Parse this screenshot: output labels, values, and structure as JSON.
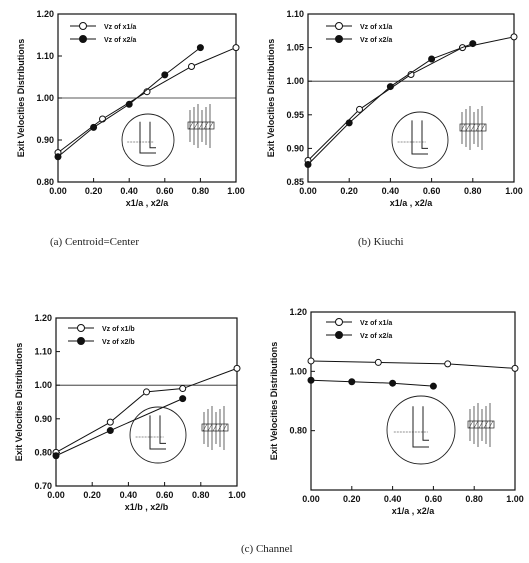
{
  "captions": {
    "a": "(a)  Centroid=Center",
    "b": "(b)  Kiuchi",
    "c": "(c)  Channel"
  },
  "chart_data": [
    {
      "type": "line",
      "ylabel": "Exit Velocities Distributions",
      "xlabel": "x1/a   ,  x2/a",
      "xlim": [
        0,
        1
      ],
      "ylim": [
        0.8,
        1.2
      ],
      "xticks": [
        "0.00",
        "0.20",
        "0.40",
        "0.60",
        "0.80",
        "1.00"
      ],
      "yticks": [
        "0.80",
        "0.90",
        "1.00",
        "1.10",
        "1.20"
      ],
      "ref_line": 1.0,
      "series": [
        {
          "name": "Vz of x1/a",
          "marker": "open",
          "x": [
            0,
            0.25,
            0.5,
            0.75,
            1.0
          ],
          "values": [
            0.87,
            0.95,
            1.015,
            1.075,
            1.12
          ]
        },
        {
          "name": "Vz of x2/a",
          "marker": "filled",
          "x": [
            0,
            0.2,
            0.4,
            0.6,
            0.8
          ],
          "values": [
            0.86,
            0.93,
            0.985,
            1.055,
            1.12
          ]
        }
      ]
    },
    {
      "type": "line",
      "ylabel": "Exit Velocities Distributions",
      "xlabel": "x1/a   ,  x2/a",
      "xlim": [
        0,
        1
      ],
      "ylim": [
        0.85,
        1.1
      ],
      "xticks": [
        "0.00",
        "0.20",
        "0.40",
        "0.60",
        "0.80",
        "1.00"
      ],
      "yticks": [
        "0.85",
        "0.90",
        "0.95",
        "1.00",
        "1.05",
        "1.10"
      ],
      "ref_line": 1.0,
      "series": [
        {
          "name": "Vz of x1/a",
          "marker": "open",
          "x": [
            0,
            0.25,
            0.5,
            0.75,
            1.0
          ],
          "values": [
            0.882,
            0.958,
            1.01,
            1.05,
            1.066
          ]
        },
        {
          "name": "Vz of x2/a",
          "marker": "filled",
          "x": [
            0,
            0.2,
            0.4,
            0.6,
            0.8
          ],
          "values": [
            0.876,
            0.938,
            0.992,
            1.033,
            1.056
          ]
        }
      ]
    },
    {
      "type": "line",
      "ylabel": "Exit Velocities Distributions",
      "xlabel": "x1/b   ,  x2/b",
      "xlim": [
        0,
        1
      ],
      "ylim": [
        0.7,
        1.2
      ],
      "xticks": [
        "0.00",
        "0.20",
        "0.40",
        "0.60",
        "0.80",
        "1.00"
      ],
      "yticks": [
        "0.70",
        "0.80",
        "0.90",
        "1.00",
        "1.10",
        "1.20"
      ],
      "ref_line": 1.0,
      "series": [
        {
          "name": "Vz of x1/b",
          "marker": "open",
          "x": [
            0,
            0.3,
            0.5,
            0.7,
            1.0
          ],
          "values": [
            0.8,
            0.89,
            0.98,
            0.99,
            1.05
          ]
        },
        {
          "name": "Vz of x2/b",
          "marker": "filled",
          "x": [
            0,
            0.3,
            0.7
          ],
          "values": [
            0.79,
            0.865,
            0.96
          ]
        }
      ]
    },
    {
      "type": "line",
      "ylabel": "Exit Velocities Distributions",
      "xlabel": "x1/a   ,  x2/a",
      "xlim": [
        0,
        1
      ],
      "ylim": [
        0.6,
        1.2
      ],
      "xticks": [
        "0.00",
        "0.20",
        "0.40",
        "0.60",
        "0.80",
        "1.00"
      ],
      "yticks": [
        "0.80",
        "1.00",
        "1.20"
      ],
      "ref_line": null,
      "series": [
        {
          "name": "Vz of x1/a",
          "marker": "open",
          "x": [
            0,
            0.33,
            0.67,
            1.0
          ],
          "values": [
            1.035,
            1.03,
            1.025,
            1.01
          ]
        },
        {
          "name": "Vz of x2/a",
          "marker": "filled",
          "x": [
            0,
            0.2,
            0.4,
            0.6
          ],
          "values": [
            0.97,
            0.965,
            0.96,
            0.95
          ]
        }
      ]
    }
  ]
}
